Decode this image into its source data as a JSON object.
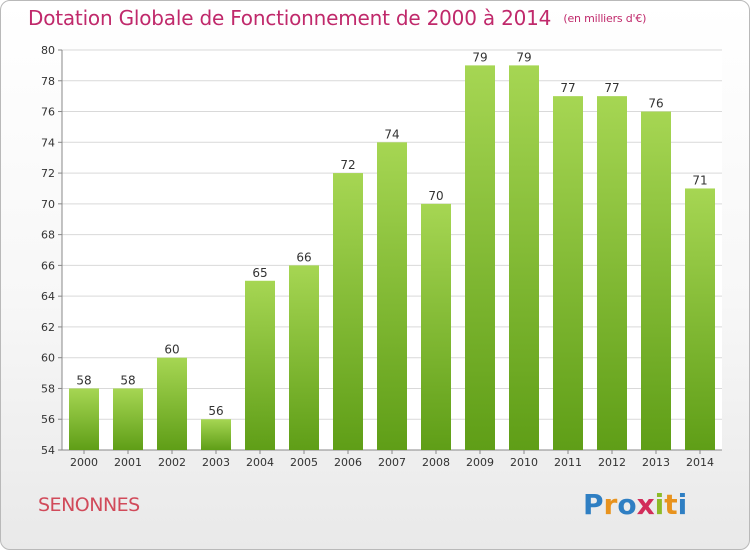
{
  "title": "Dotation Globale de Fonctionnement de 2000 à 2014",
  "unit_note": "(en milliers d'€)",
  "commune": "SENONNES",
  "logo_text": "Proxiti",
  "colors": {
    "title": "#c0296b",
    "bar_light": "#a6d653",
    "bar_dark": "#5f9e17",
    "commune": "#d14a5a"
  },
  "chart_data": {
    "type": "bar",
    "categories": [
      "2000",
      "2001",
      "2002",
      "2003",
      "2004",
      "2005",
      "2006",
      "2007",
      "2008",
      "2009",
      "2010",
      "2011",
      "2012",
      "2013",
      "2014"
    ],
    "values": [
      58,
      58,
      60,
      56,
      65,
      66,
      72,
      74,
      70,
      79,
      79,
      77,
      77,
      76,
      71
    ],
    "ylim": [
      54,
      80
    ],
    "yticks": [
      54,
      56,
      58,
      60,
      62,
      64,
      66,
      68,
      70,
      72,
      74,
      76,
      78,
      80
    ],
    "grid": true,
    "data_labels": true
  }
}
